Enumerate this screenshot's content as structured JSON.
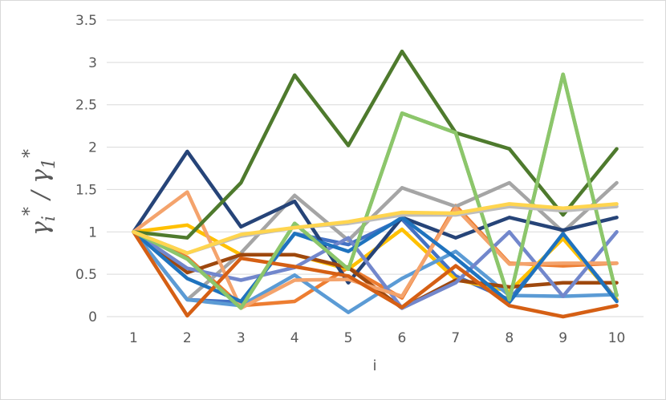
{
  "chart_data": {
    "type": "line",
    "xlabel": "i",
    "ylabel": "γ_i* / γ_1*",
    "x": [
      1,
      2,
      3,
      4,
      5,
      6,
      7,
      8,
      9,
      10
    ],
    "ylim": [
      0,
      3.5
    ],
    "ytick_labels": [
      "0",
      "0.5",
      "1",
      "1.5",
      "2",
      "2.5",
      "3",
      "3.5"
    ],
    "xtick_labels": [
      "1",
      "2",
      "3",
      "4",
      "5",
      "6",
      "7",
      "8",
      "9",
      "10"
    ],
    "grid": "horizontal",
    "legend": "none",
    "series": [
      {
        "color": "#4472C4",
        "values": [
          1,
          0.2,
          0.17,
          0.98,
          0.85,
          1.15,
          0.48,
          0.2,
          0.97,
          0.2
        ]
      },
      {
        "color": "#ED7D31",
        "values": [
          1,
          0.7,
          0.13,
          0.18,
          0.58,
          0.22,
          1.31,
          0.63,
          0.6,
          0.63
        ]
      },
      {
        "color": "#A5A5A5",
        "values": [
          1,
          0.2,
          0.75,
          1.43,
          0.9,
          1.52,
          1.3,
          1.58,
          1.0,
          1.58
        ]
      },
      {
        "color": "#FFC000",
        "values": [
          1,
          1.08,
          0.73,
          0.73,
          0.56,
          1.03,
          0.44,
          0.3,
          0.92,
          0.2
        ]
      },
      {
        "color": "#5B9BD5",
        "values": [
          1,
          0.2,
          0.13,
          0.49,
          0.05,
          0.45,
          0.77,
          0.25,
          0.24,
          0.26
        ]
      },
      {
        "color": "#70AD47",
        "values": [
          1,
          0.68,
          0.1,
          1.1,
          0.56,
          2.4,
          2.17,
          0.2,
          2.86,
          0.25
        ]
      },
      {
        "color": "#264478",
        "values": [
          1,
          1.95,
          1.06,
          1.36,
          0.4,
          1.17,
          0.93,
          1.17,
          1.02,
          1.17
        ]
      },
      {
        "color": "#9E480E",
        "values": [
          1,
          0.52,
          0.73,
          0.73,
          0.58,
          0.1,
          0.43,
          0.35,
          0.4,
          0.4
        ]
      },
      {
        "color": "#7287CC",
        "values": [
          1,
          0.57,
          0.43,
          0.58,
          0.93,
          0.1,
          0.4,
          1.0,
          0.24,
          1.0
        ]
      },
      {
        "color": "#F4A36C",
        "values": [
          1,
          1.47,
          0.1,
          0.43,
          0.44,
          0.24,
          1.28,
          0.62,
          0.63,
          0.63
        ]
      },
      {
        "color": "#1F73BE",
        "values": [
          1,
          0.45,
          0.18,
          0.98,
          0.77,
          1.17,
          0.69,
          0.17,
          0.98,
          0.18
        ]
      },
      {
        "color": "#D55F14",
        "values": [
          1,
          0.01,
          0.69,
          0.59,
          0.48,
          0.11,
          0.6,
          0.13,
          0.0,
          0.13
        ]
      },
      {
        "color": "#4E7A2D",
        "values": [
          1,
          0.93,
          1.58,
          2.85,
          2.02,
          3.13,
          2.17,
          1.98,
          1.2,
          1.98
        ]
      },
      {
        "color": "#8CC66B",
        "values": [
          1,
          0.68,
          0.1,
          1.1,
          0.56,
          2.4,
          2.17,
          0.2,
          2.86,
          0.25
        ]
      },
      {
        "color": "#BDBDBD",
        "values": [
          1,
          0.75,
          0.95,
          1.05,
          1.1,
          1.2,
          1.2,
          1.3,
          1.25,
          1.3
        ]
      },
      {
        "color": "#FFD54F",
        "values": [
          1,
          0.75,
          0.97,
          1.05,
          1.12,
          1.23,
          1.22,
          1.33,
          1.28,
          1.33
        ]
      }
    ]
  }
}
